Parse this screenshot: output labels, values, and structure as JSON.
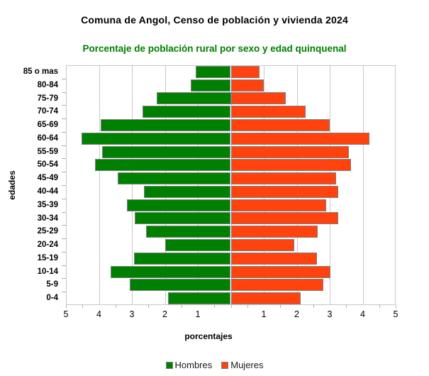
{
  "chart_data": {
    "type": "bar",
    "variant": "population-pyramid",
    "title": "Comuna de Angol, Censo de población y vivienda 2024",
    "subtitle": "Porcentaje de población rural por sexo y edad quinquenal",
    "xlabel": "porcentajes",
    "ylabel": "edades",
    "categories_top_to_bottom": [
      "85 o mas",
      "80-84",
      "75-79",
      "70-74",
      "65-69",
      "60-64",
      "55-59",
      "50-54",
      "45-49",
      "40-44",
      "35-39",
      "30-34",
      "25-29",
      "20-24",
      "15-19",
      "10-14",
      "5-9",
      "0-4"
    ],
    "series": [
      {
        "name": "Hombres",
        "side": "left",
        "color": "#008000",
        "values": [
          1.07,
          1.21,
          2.25,
          2.68,
          3.94,
          4.53,
          3.91,
          4.12,
          3.42,
          2.63,
          3.14,
          2.92,
          2.56,
          1.99,
          2.94,
          3.65,
          3.06,
          1.91
        ]
      },
      {
        "name": "Mujeres",
        "side": "right",
        "color": "#FF420E",
        "values": [
          0.87,
          0.99,
          1.67,
          2.27,
          3.0,
          4.2,
          3.57,
          3.65,
          3.19,
          3.26,
          2.89,
          3.25,
          2.64,
          1.92,
          2.62,
          3.02,
          2.8,
          2.12
        ]
      }
    ],
    "axis": {
      "min": 0,
      "max": 5,
      "tick_step": 1,
      "tick_labels_left": [
        "5",
        "4",
        "3",
        "2",
        "1"
      ],
      "tick_labels_right": [
        "1",
        "2",
        "3",
        "4",
        "5"
      ]
    },
    "grid": true,
    "legend_position": "bottom"
  },
  "colors": {
    "background": "#FFFFFF",
    "title_text": "#000000",
    "subtitle_text": "#008000",
    "grid": "#C8C8C8",
    "plot_border": "#C6C6C6",
    "bar_border": "#7F7F7F",
    "axis_tick": "#AFAFAF",
    "label_text": "#000000",
    "legend_text": "#1A1A1A"
  }
}
